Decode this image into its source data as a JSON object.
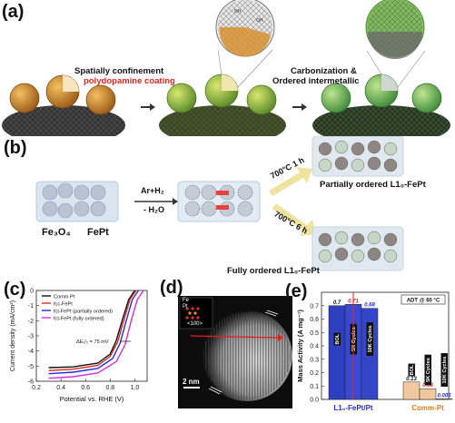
{
  "panel_a": {
    "label": "(a)",
    "text_line1": "Spatially confinement",
    "text_line2": "polydopamine coating",
    "text_right1": "Carbonization &",
    "text_right2": "Ordered intermetallic",
    "colors": {
      "red": "#e0261f",
      "gold": "#d8962a",
      "green": "#7fb84a",
      "dark": "#2b2b2b"
    }
  },
  "panel_b": {
    "label": "(b)",
    "reagent1": "Ar+H₂",
    "reagent2": "- H₂O",
    "fe3o4": "Fe₃O₄",
    "fept": "FePt",
    "cond1": "700°C 1 h",
    "cond2": "700°C 6 h",
    "product1": "Partially ordered L1₀-FePt",
    "product2": "Fully ordered L1₀-FePt"
  },
  "panel_c": {
    "label": "(c)",
    "legend": [
      "Comm Pt",
      "fcc-FePt",
      "fct-FePt (partially ordered)",
      "fct-FePt (fully ordered)"
    ],
    "annotation": "ΔE₁/₂ = 75 mV",
    "xlabel": "Potential vs. RHE (V)",
    "ylabel": "Current density (mA/cm²)",
    "xticks": [
      "0.2",
      "0.4",
      "0.6",
      "0.8",
      "1.0"
    ],
    "yticks": [
      "0",
      "-1",
      "-2",
      "-3",
      "-4",
      "-5",
      "-6"
    ]
  },
  "panel_d": {
    "label": "(d)",
    "scale": "2 nm",
    "inset_label": "<100>",
    "inset_elements": [
      "Fe",
      "Pt"
    ]
  },
  "panel_e": {
    "label": "(e)",
    "badge": "ADT @ 60 °C",
    "ylabel": "Mass Activity (A mg⁻¹)",
    "yticks": [
      "0.0",
      "0.1",
      "0.2",
      "0.3",
      "0.4",
      "0.5",
      "0.6",
      "0.7"
    ],
    "group1": "L1₀-FePt/Pt",
    "group2": "Comm-Pt",
    "bar_labels": [
      "BOL",
      "5K Cycles",
      "10K Cycles"
    ]
  },
  "chart_data": [
    {
      "type": "line",
      "xlabel": "Potential vs. RHE (V)",
      "ylabel": "Current density (mA/cm²)",
      "xlim": [
        0.2,
        1.1
      ],
      "ylim": [
        -6,
        0
      ],
      "series": [
        {
          "name": "Comm Pt",
          "color": "#111111",
          "x": [
            0.3,
            0.5,
            0.7,
            0.8,
            0.85,
            0.9,
            0.95,
            1.0
          ],
          "y": [
            -5.1,
            -5.05,
            -4.8,
            -4.2,
            -3.3,
            -1.9,
            -0.6,
            0.0
          ]
        },
        {
          "name": "fcc-FePt",
          "color": "#e0261f",
          "x": [
            0.3,
            0.5,
            0.7,
            0.8,
            0.86,
            0.91,
            0.96,
            1.01
          ],
          "y": [
            -5.3,
            -5.2,
            -4.95,
            -4.35,
            -3.4,
            -2.0,
            -0.6,
            0.0
          ]
        },
        {
          "name": "fct-FePt (partially ordered)",
          "color": "#2a2ad8",
          "x": [
            0.3,
            0.5,
            0.7,
            0.82,
            0.88,
            0.93,
            0.98,
            1.03
          ],
          "y": [
            -5.5,
            -5.4,
            -5.15,
            -4.5,
            -3.5,
            -2.0,
            -0.6,
            0.0
          ]
        },
        {
          "name": "fct-FePt (fully ordered)",
          "color": "#d62bd6",
          "x": [
            0.3,
            0.5,
            0.7,
            0.85,
            0.92,
            0.97,
            1.02,
            1.07
          ],
          "y": [
            -5.8,
            -5.7,
            -5.45,
            -4.7,
            -3.6,
            -2.0,
            -0.6,
            0.0
          ]
        }
      ]
    },
    {
      "type": "bar",
      "ylabel": "Mass Activity (A mg⁻¹)",
      "ylim": [
        0,
        0.8
      ],
      "categories": [
        "L1₀-FePt/Pt",
        "Comm-Pt"
      ],
      "series": [
        {
          "name": "BOL",
          "values": [
            0.7,
            0.13
          ],
          "labels": [
            "0.7",
            "0.13"
          ]
        },
        {
          "name": "5K Cycles",
          "values": [
            0.71,
            0.08
          ],
          "labels": [
            "0.71",
            "0.08"
          ]
        },
        {
          "name": "10K Cycles",
          "values": [
            0.68,
            0.005
          ],
          "labels": [
            "0.68",
            "0.005"
          ]
        }
      ]
    }
  ]
}
